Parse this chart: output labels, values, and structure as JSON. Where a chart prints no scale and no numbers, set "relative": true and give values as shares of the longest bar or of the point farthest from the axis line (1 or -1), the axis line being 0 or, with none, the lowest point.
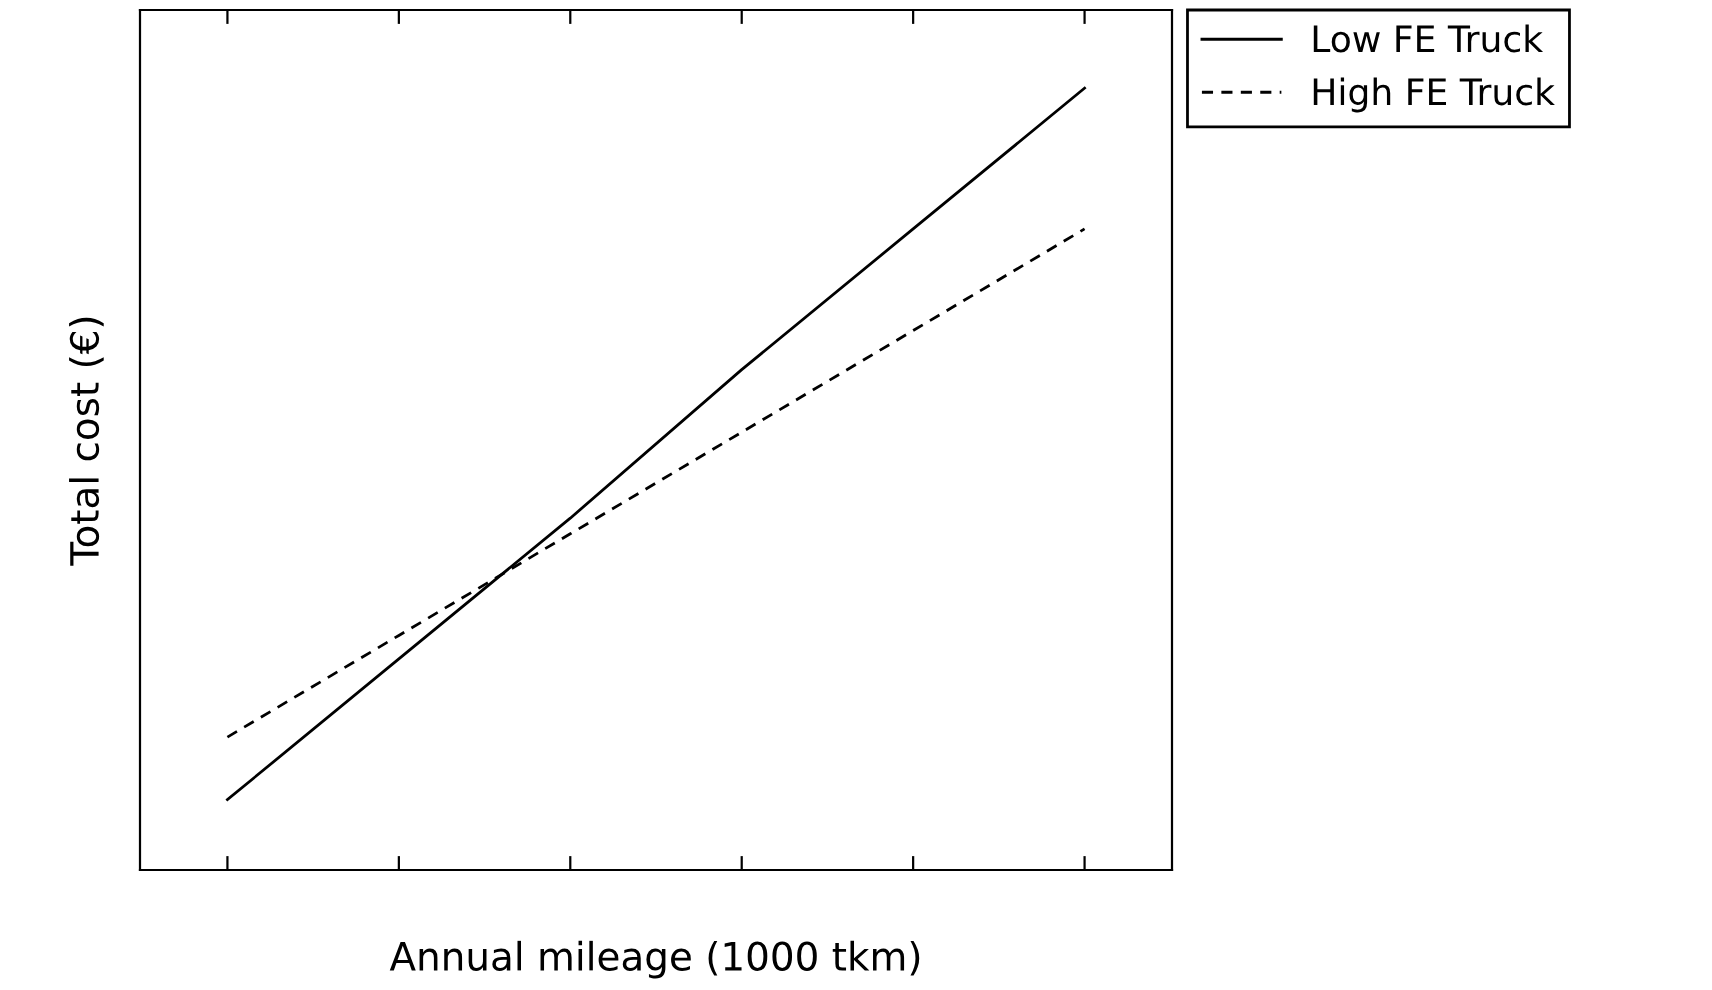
{
  "chart_data": {
    "type": "line",
    "xlabel": "Annual mileage (1000 tkm)",
    "ylabel": "Total cost (€)",
    "relative": true,
    "categories": [
      null,
      null,
      null,
      null,
      null,
      null
    ],
    "series": [
      {
        "name": "Low FE Truck",
        "color": "#000000",
        "line_style": "solid",
        "values": [
          0.09,
          0.27,
          0.45,
          0.64,
          0.82,
          1.0
        ]
      },
      {
        "name": "High FE Truck",
        "color": "#000000",
        "line_style": "dashed",
        "values": [
          0.17,
          0.3,
          0.43,
          0.56,
          0.69,
          0.82
        ]
      }
    ],
    "legend": "top right",
    "grid": false,
    "marker": "none"
  }
}
